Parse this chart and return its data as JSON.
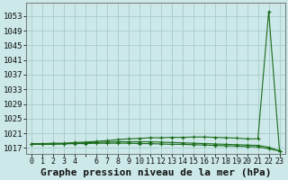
{
  "title": "Graphe pression niveau de la mer (hPa)",
  "x_labels": [
    "0",
    "1",
    "2",
    "3",
    "4",
    "",
    "6",
    "7",
    "8",
    "9",
    "10",
    "11",
    "12",
    "13",
    "14",
    "15",
    "16",
    "17",
    "18",
    "19",
    "20",
    "21",
    "22",
    "23"
  ],
  "x_values": [
    0,
    1,
    2,
    3,
    4,
    5,
    6,
    7,
    8,
    9,
    10,
    11,
    12,
    13,
    14,
    15,
    16,
    17,
    18,
    19,
    20,
    21,
    22,
    23
  ],
  "line1_y": [
    1018.2,
    1018.2,
    1018.3,
    1018.3,
    1018.5,
    1018.6,
    1018.8,
    1019.0,
    1019.3,
    1019.5,
    1019.6,
    1019.8,
    1019.8,
    1019.9,
    1019.9,
    1020.0,
    1020.0,
    1019.9,
    1019.8,
    1019.7,
    1019.5,
    1019.5,
    1054.2,
    1016.2
  ],
  "line2_y": [
    1018.0,
    1018.0,
    1018.0,
    1018.1,
    1018.2,
    1018.2,
    1018.3,
    1018.3,
    1018.3,
    1018.3,
    1018.2,
    1018.2,
    1018.1,
    1018.0,
    1018.0,
    1017.9,
    1017.8,
    1017.7,
    1017.6,
    1017.5,
    1017.4,
    1017.3,
    1016.8,
    1016.2
  ],
  "line3_y": [
    1018.1,
    1018.1,
    1018.1,
    1018.2,
    1018.3,
    1018.4,
    1018.5,
    1018.6,
    1018.7,
    1018.7,
    1018.7,
    1018.7,
    1018.6,
    1018.5,
    1018.4,
    1018.3,
    1018.2,
    1018.1,
    1018.0,
    1017.9,
    1017.8,
    1017.7,
    1017.2,
    1016.2
  ],
  "ylim_min": 1015.5,
  "ylim_max": 1056.5,
  "yticks": [
    1017,
    1021,
    1025,
    1029,
    1033,
    1037,
    1041,
    1045,
    1049,
    1053
  ],
  "line_color": "#1a6b1a",
  "bg_color": "#cce8e8",
  "grid_color": "#a8cccc",
  "title_fontsize": 8,
  "tick_fontsize": 6.5
}
